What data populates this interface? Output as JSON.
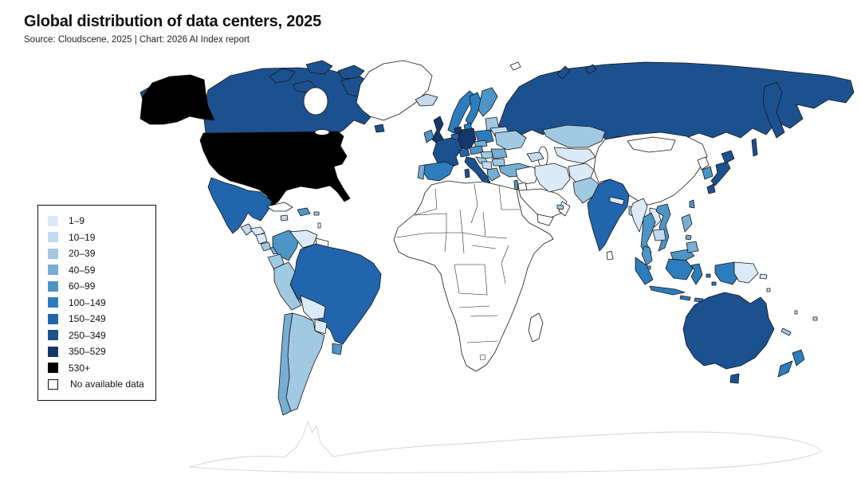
{
  "header": {
    "title": "Global distribution of data centers, 2025",
    "subtitle": "Source: Cloudscene, 2025 | Chart: 2026 AI Index report"
  },
  "chart_data": {
    "type": "choropleth-map",
    "title": "Global distribution of data centers, 2025",
    "source_line": "Source: Cloudscene, 2025 | Chart: 2026 AI Index report",
    "unit": "number of data centers per country",
    "legend_position": "left",
    "legend": [
      {
        "label": "1–9",
        "color": "#dbeaf6"
      },
      {
        "label": "10–19",
        "color": "#c3daef"
      },
      {
        "label": "20–39",
        "color": "#a2c9e2"
      },
      {
        "label": "40–59",
        "color": "#77aed4"
      },
      {
        "label": "60–99",
        "color": "#4d95c7"
      },
      {
        "label": "100–149",
        "color": "#2d7dbd"
      },
      {
        "label": "150–249",
        "color": "#2166ac"
      },
      {
        "label": "250–349",
        "color": "#1c5190"
      },
      {
        "label": "350–529",
        "color": "#15386b"
      },
      {
        "label": "530+",
        "color": "#000000"
      },
      {
        "label": "No available data",
        "color": "#ffffff"
      }
    ],
    "countries": {
      "united-states": "530+",
      "canada": "250–349",
      "greenland": "No available data",
      "mexico": "150–249",
      "guatemala": "10–19",
      "honduras": "1–9",
      "nicaragua": "1–9",
      "costa-rica": "20–39",
      "panama": "40–59",
      "cuba": "No available data",
      "jamaica": "10–19",
      "dominican-republic": "60–99",
      "puerto-rico": "20–39",
      "lesser-antilles": "No available data",
      "colombia": "60–99",
      "venezuela": "1–9",
      "guianas": "No available data",
      "ecuador": "20–39",
      "peru": "20–39",
      "brazil": "150–249",
      "bolivia": "1–9",
      "paraguay": "1–9",
      "uruguay": "60–99",
      "chile": "40–59",
      "argentina": "20–39",
      "iceland": "10–19",
      "united-kingdom": "350–529",
      "ireland": "60–99",
      "norway": "100–149",
      "sweden": "100–149",
      "finland": "60–99",
      "denmark": "100–149",
      "baltics": "20–39",
      "belarus": "10–19",
      "poland": "100–149",
      "germany": "350–529",
      "netherlands": "350–529",
      "belgium": "150–249",
      "france": "250–349",
      "switzerland": "150–249",
      "austria": "60–99",
      "czechia": "40–59",
      "spain": "100–149",
      "portugal": "40–59",
      "italy": "250–349",
      "croatia-slovenia": "20–39",
      "serbia-bosnia": "10–19",
      "hungary": "20–39",
      "romania": "40–59",
      "bulgaria": "20–39",
      "greece": "40–59",
      "ukraine": "20–39",
      "turkey": "40–59",
      "russia": "250–349",
      "kazakhstan": "20–39",
      "central-asia": "1–9",
      "caucasus": "10–19",
      "iran": "1–9",
      "afghanistan": "1–9",
      "pakistan": "20–39",
      "india": "150–249",
      "nepal": "1–9",
      "bangladesh": "10–19",
      "sri-lanka": "No available data",
      "china": "No available data",
      "mongolia": "No available data",
      "north-korea": "No available data",
      "south-korea": "60–99",
      "japan": "250–349",
      "taiwan": "60–99",
      "myanmar": "1–9",
      "thailand": "60–99",
      "laos": "1–9",
      "cambodia": "10–19",
      "vietnam": "60–99",
      "malaysia": "60–99",
      "singapore": "60–99",
      "indonesia": "100–149",
      "papua-new-guinea": "1–9",
      "philippines": "40–59",
      "middle-east": "No available data",
      "israel": "60–99",
      "jordan": "No available data",
      "saudi-arabia": "No available data",
      "yemen": "No available data",
      "oman": "No available data",
      "uae": "20–39",
      "svalbard": "No available data",
      "africa": "No available data",
      "madagascar": "No available data",
      "australia": "250–349",
      "new-zealand": "100–149",
      "new-caledonia": "20–39",
      "fiji": "10–19",
      "vanuatu": "1–9",
      "solomon-islands": "1–9"
    }
  }
}
